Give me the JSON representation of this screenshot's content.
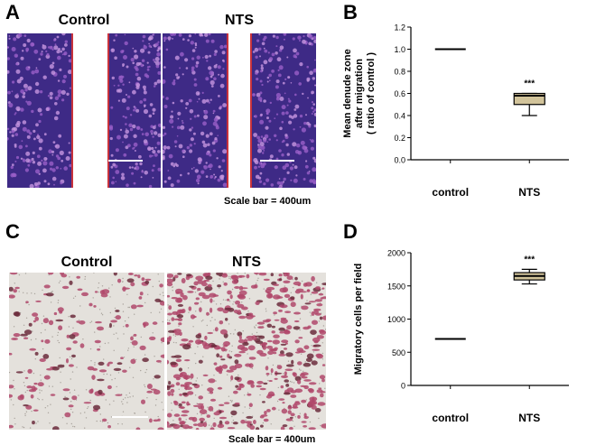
{
  "panels": {
    "a": {
      "letter": "A",
      "left_label": "Control",
      "right_label": "NTS",
      "scale_text": "Scale bar = 400um"
    },
    "b": {
      "letter": "B"
    },
    "c": {
      "letter": "C",
      "left_label": "Control",
      "right_label": "NTS",
      "scale_text": "Scale bar = 400um"
    },
    "d": {
      "letter": "D"
    }
  },
  "colors": {
    "scratch_bg": "#3e2a86",
    "scratch_cells": "#9a5fc8",
    "scratch_gap": "#ffffff",
    "scratch_edge": "#c8323c",
    "transwell_bg": "#e4e1dc",
    "transwell_cells": "#b0486b",
    "box_fill": "#d2c49b"
  },
  "chart_data": [
    {
      "type": "box",
      "ylabel_lines": [
        "Mean denude zone",
        "after migration",
        "( ratio of control )"
      ],
      "yticks": [
        "0.0",
        "0.2",
        "0.4",
        "0.6",
        "0.8",
        "1.0",
        "1.2"
      ],
      "ylim": [
        0,
        1.2
      ],
      "categories": [
        "control",
        "NTS"
      ],
      "boxes": [
        {
          "category": "control",
          "min": 1.0,
          "q1": 1.0,
          "median": 1.0,
          "q3": 1.0,
          "max": 1.0
        },
        {
          "category": "NTS",
          "min": 0.4,
          "q1": 0.5,
          "median": 0.58,
          "q3": 0.6,
          "max": 0.6,
          "annotation": "***"
        }
      ]
    },
    {
      "type": "box",
      "ylabel_lines": [
        "Migratory cells per field"
      ],
      "yticks": [
        "0",
        "500",
        "1000",
        "1500",
        "2000"
      ],
      "ylim": [
        0,
        2000
      ],
      "categories": [
        "control",
        "NTS"
      ],
      "boxes": [
        {
          "category": "control",
          "min": 700,
          "q1": 700,
          "median": 700,
          "q3": 700,
          "max": 700
        },
        {
          "category": "NTS",
          "min": 1530,
          "q1": 1590,
          "median": 1650,
          "q3": 1700,
          "max": 1750,
          "annotation": "***"
        }
      ]
    }
  ]
}
